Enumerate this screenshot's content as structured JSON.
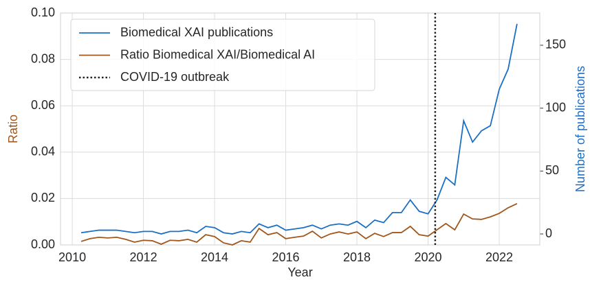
{
  "chart_data": {
    "type": "line",
    "xlabel": "Year",
    "ylabel": "Ratio",
    "y2label": "Number of publications",
    "x": [
      2010.25,
      2010.5,
      2010.75,
      2011,
      2011.25,
      2011.5,
      2011.75,
      2012,
      2012.25,
      2012.5,
      2012.75,
      2013,
      2013.25,
      2013.5,
      2013.75,
      2014,
      2014.25,
      2014.5,
      2014.75,
      2015,
      2015.25,
      2015.5,
      2015.75,
      2016,
      2016.25,
      2016.5,
      2016.75,
      2017,
      2017.25,
      2017.5,
      2017.75,
      2018,
      2018.25,
      2018.5,
      2018.75,
      2019,
      2019.25,
      2019.5,
      2019.75,
      2020,
      2020.25,
      2020.5,
      2020.75,
      2021,
      2021.25,
      2021.5,
      2021.75,
      2022,
      2022.25,
      2022.5
    ],
    "series": [
      {
        "name": "Biomedical XAI publications",
        "color": "#1a6fc4",
        "axis": "y2",
        "values": [
          1,
          2,
          3,
          3,
          3,
          2,
          1,
          2,
          2,
          0,
          2,
          2,
          3,
          1,
          6,
          5,
          1,
          0,
          2,
          1,
          8,
          5,
          7,
          3,
          4,
          5,
          7,
          4,
          7,
          8,
          7,
          10,
          5,
          11,
          9,
          17,
          17,
          27,
          18,
          16,
          27,
          45,
          39,
          90,
          73,
          82,
          86,
          115,
          131,
          167
        ]
      },
      {
        "name": "Ratio Biomedical XAI/Biomedical AI",
        "color": "#a0561a",
        "values": [
          0.0015,
          0.0027,
          0.0033,
          0.003,
          0.0033,
          0.0024,
          0.0012,
          0.002,
          0.0018,
          0.0003,
          0.002,
          0.0018,
          0.0024,
          0.0012,
          0.0044,
          0.0036,
          0.0009,
          0.0,
          0.0018,
          0.0012,
          0.0071,
          0.0044,
          0.0053,
          0.0027,
          0.0033,
          0.0038,
          0.0059,
          0.003,
          0.0047,
          0.0056,
          0.0047,
          0.0056,
          0.0027,
          0.005,
          0.0036,
          0.0053,
          0.0053,
          0.008,
          0.0044,
          0.0038,
          0.0065,
          0.0092,
          0.0065,
          0.0133,
          0.0112,
          0.011,
          0.0121,
          0.0136,
          0.016,
          0.0178
        ]
      }
    ],
    "vlines": [
      {
        "name": "COVID-19 outbreak",
        "x": 2020.2,
        "color": "#222222"
      }
    ],
    "xlim": [
      2009.67,
      2023.14
    ],
    "xticks": [
      2010,
      2012,
      2014,
      2016,
      2018,
      2020,
      2022
    ],
    "ylim": [
      0,
      0.1
    ],
    "yticks": [
      {
        "value": 0,
        "label": "0.00"
      },
      {
        "value": 0.02,
        "label": "0.02"
      },
      {
        "value": 0.04,
        "label": "0.04"
      },
      {
        "value": 0.06,
        "label": "0.06"
      },
      {
        "value": 0.08,
        "label": "0.08"
      },
      {
        "value": 0.1,
        "label": "0.10"
      }
    ],
    "y2lim": [
      -8.7,
      175.6
    ],
    "y2ticks": [
      0,
      50,
      100,
      150
    ],
    "grid": true,
    "legend": "upper left"
  }
}
